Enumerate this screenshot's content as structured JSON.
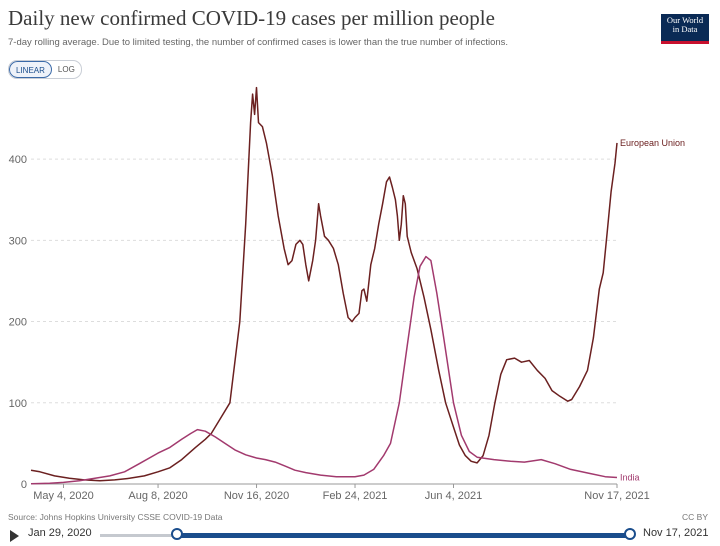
{
  "header": {
    "title": "Daily new confirmed COVID-19 cases per million people",
    "subtitle": "7-day rolling average. Due to limited testing, the number of confirmed cases is lower than the true number of infections.",
    "logo_line1": "Our World",
    "logo_line2": "in Data"
  },
  "scale_toggle": {
    "linear": "LINEAR",
    "log": "LOG",
    "selected": "LINEAR"
  },
  "footer": {
    "source": "Source: Johns Hopkins University CSSE COVID-19 Data",
    "license": "CC BY"
  },
  "timeline": {
    "start_label": "Jan 29, 2020",
    "end_label": "Nov 17, 2021"
  },
  "colors": {
    "eu": "#6b2020",
    "india": "#a23a6e",
    "grid": "#dddddd",
    "axis_text": "#666666"
  },
  "chart_data": {
    "type": "line",
    "title": "Daily new confirmed COVID-19 cases per million people",
    "subtitle": "7-day rolling average. Due to limited testing, the number of confirmed cases is lower than the true number of infections.",
    "x_ticks": [
      "May 4, 2020",
      "Aug 8, 2020",
      "Nov 16, 2020",
      "Feb 24, 2021",
      "Jun 4, 2021",
      "Nov 17, 2021"
    ],
    "y_ticks": [
      0,
      100,
      200,
      300,
      400
    ],
    "xlim": [
      "2020-04-01",
      "2021-11-17"
    ],
    "ylim": [
      0,
      490
    ],
    "legend": "end-of-line labels",
    "series": [
      {
        "name": "European Union",
        "points": [
          [
            "2020-04-01",
            17
          ],
          [
            "2020-04-10",
            15
          ],
          [
            "2020-04-25",
            10
          ],
          [
            "2020-05-10",
            7
          ],
          [
            "2020-05-25",
            5
          ],
          [
            "2020-06-10",
            4
          ],
          [
            "2020-06-25",
            5
          ],
          [
            "2020-07-10",
            7
          ],
          [
            "2020-07-25",
            10
          ],
          [
            "2020-08-08",
            15
          ],
          [
            "2020-08-20",
            20
          ],
          [
            "2020-09-01",
            30
          ],
          [
            "2020-09-15",
            45
          ],
          [
            "2020-09-25",
            55
          ],
          [
            "2020-10-01",
            62
          ],
          [
            "2020-10-10",
            80
          ],
          [
            "2020-10-20",
            100
          ],
          [
            "2020-10-30",
            200
          ],
          [
            "2020-11-05",
            320
          ],
          [
            "2020-11-10",
            445
          ],
          [
            "2020-11-12",
            480
          ],
          [
            "2020-11-14",
            455
          ],
          [
            "2020-11-16",
            488
          ],
          [
            "2020-11-18",
            445
          ],
          [
            "2020-11-22",
            440
          ],
          [
            "2020-11-26",
            420
          ],
          [
            "2020-12-02",
            380
          ],
          [
            "2020-12-08",
            330
          ],
          [
            "2020-12-14",
            290
          ],
          [
            "2020-12-18",
            270
          ],
          [
            "2020-12-22",
            275
          ],
          [
            "2020-12-26",
            295
          ],
          [
            "2020-12-30",
            300
          ],
          [
            "2021-01-02",
            295
          ],
          [
            "2021-01-05",
            270
          ],
          [
            "2021-01-08",
            250
          ],
          [
            "2021-01-12",
            275
          ],
          [
            "2021-01-15",
            300
          ],
          [
            "2021-01-18",
            345
          ],
          [
            "2021-01-20",
            330
          ],
          [
            "2021-01-24",
            305
          ],
          [
            "2021-01-28",
            300
          ],
          [
            "2021-02-02",
            290
          ],
          [
            "2021-02-07",
            270
          ],
          [
            "2021-02-12",
            235
          ],
          [
            "2021-02-17",
            205
          ],
          [
            "2021-02-21",
            200
          ],
          [
            "2021-02-24",
            205
          ],
          [
            "2021-02-28",
            210
          ],
          [
            "2021-03-03",
            238
          ],
          [
            "2021-03-05",
            240
          ],
          [
            "2021-03-08",
            225
          ],
          [
            "2021-03-12",
            270
          ],
          [
            "2021-03-16",
            290
          ],
          [
            "2021-03-20",
            320
          ],
          [
            "2021-03-24",
            345
          ],
          [
            "2021-03-28",
            372
          ],
          [
            "2021-03-31",
            378
          ],
          [
            "2021-04-03",
            365
          ],
          [
            "2021-04-06",
            350
          ],
          [
            "2021-04-08",
            330
          ],
          [
            "2021-04-10",
            300
          ],
          [
            "2021-04-12",
            320
          ],
          [
            "2021-04-14",
            355
          ],
          [
            "2021-04-16",
            345
          ],
          [
            "2021-04-18",
            305
          ],
          [
            "2021-04-22",
            285
          ],
          [
            "2021-04-28",
            265
          ],
          [
            "2021-05-05",
            230
          ],
          [
            "2021-05-12",
            190
          ],
          [
            "2021-05-20",
            140
          ],
          [
            "2021-05-27",
            100
          ],
          [
            "2021-06-04",
            70
          ],
          [
            "2021-06-10",
            48
          ],
          [
            "2021-06-16",
            35
          ],
          [
            "2021-06-22",
            28
          ],
          [
            "2021-06-28",
            26
          ],
          [
            "2021-07-04",
            35
          ],
          [
            "2021-07-10",
            60
          ],
          [
            "2021-07-16",
            100
          ],
          [
            "2021-07-22",
            135
          ],
          [
            "2021-07-28",
            153
          ],
          [
            "2021-08-05",
            155
          ],
          [
            "2021-08-12",
            150
          ],
          [
            "2021-08-20",
            152
          ],
          [
            "2021-08-28",
            140
          ],
          [
            "2021-09-05",
            130
          ],
          [
            "2021-09-12",
            115
          ],
          [
            "2021-09-20",
            108
          ],
          [
            "2021-09-28",
            102
          ],
          [
            "2021-10-02",
            104
          ],
          [
            "2021-10-10",
            120
          ],
          [
            "2021-10-18",
            140
          ],
          [
            "2021-10-24",
            180
          ],
          [
            "2021-10-30",
            240
          ],
          [
            "2021-11-03",
            260
          ],
          [
            "2021-11-07",
            310
          ],
          [
            "2021-11-11",
            360
          ],
          [
            "2021-11-15",
            395
          ],
          [
            "2021-11-17",
            420
          ]
        ]
      },
      {
        "name": "India",
        "points": [
          [
            "2020-04-01",
            0.3
          ],
          [
            "2020-04-20",
            1
          ],
          [
            "2020-05-04",
            2
          ],
          [
            "2020-05-20",
            4
          ],
          [
            "2020-06-05",
            7
          ],
          [
            "2020-06-20",
            10
          ],
          [
            "2020-07-05",
            15
          ],
          [
            "2020-07-20",
            25
          ],
          [
            "2020-08-08",
            38
          ],
          [
            "2020-08-20",
            45
          ],
          [
            "2020-09-01",
            55
          ],
          [
            "2020-09-10",
            62
          ],
          [
            "2020-09-17",
            67
          ],
          [
            "2020-09-25",
            65
          ],
          [
            "2020-10-05",
            58
          ],
          [
            "2020-10-15",
            50
          ],
          [
            "2020-10-25",
            42
          ],
          [
            "2020-11-05",
            36
          ],
          [
            "2020-11-16",
            32
          ],
          [
            "2020-11-25",
            30
          ],
          [
            "2020-12-05",
            27
          ],
          [
            "2020-12-15",
            22
          ],
          [
            "2020-12-25",
            17
          ],
          [
            "2021-01-05",
            14
          ],
          [
            "2021-01-20",
            11
          ],
          [
            "2021-02-05",
            9
          ],
          [
            "2021-02-24",
            9
          ],
          [
            "2021-03-05",
            11
          ],
          [
            "2021-03-15",
            18
          ],
          [
            "2021-03-25",
            35
          ],
          [
            "2021-04-01",
            50
          ],
          [
            "2021-04-10",
            100
          ],
          [
            "2021-04-18",
            170
          ],
          [
            "2021-04-25",
            230
          ],
          [
            "2021-05-01",
            268
          ],
          [
            "2021-05-07",
            280
          ],
          [
            "2021-05-12",
            275
          ],
          [
            "2021-05-18",
            235
          ],
          [
            "2021-05-25",
            180
          ],
          [
            "2021-06-04",
            100
          ],
          [
            "2021-06-12",
            60
          ],
          [
            "2021-06-20",
            40
          ],
          [
            "2021-06-28",
            33
          ],
          [
            "2021-07-15",
            30
          ],
          [
            "2021-08-01",
            28
          ],
          [
            "2021-08-15",
            27
          ],
          [
            "2021-09-01",
            30
          ],
          [
            "2021-09-15",
            25
          ],
          [
            "2021-10-01",
            18
          ],
          [
            "2021-10-20",
            13
          ],
          [
            "2021-11-05",
            9
          ],
          [
            "2021-11-17",
            8
          ]
        ]
      }
    ]
  }
}
